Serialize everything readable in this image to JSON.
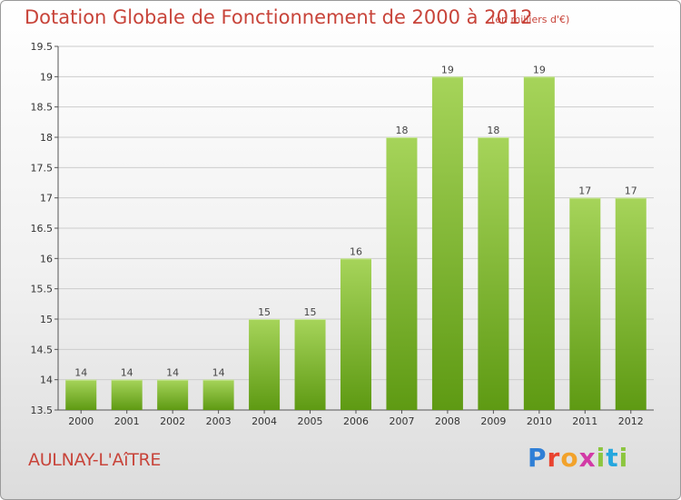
{
  "header": {
    "title": "Dotation Globale de Fonctionnement de 2000 à 2012",
    "subtitle": "(en milliers d'€)"
  },
  "footer": {
    "commune": "AULNAY-L'AîTRE",
    "logo_text": "Proxiti"
  },
  "colors": {
    "title": "#c8443a",
    "bar_top": "#a6d45a",
    "bar_bottom": "#5e9a13",
    "grid": "#cccccc",
    "axis": "#555555"
  },
  "chart_data": {
    "type": "bar",
    "title": "Dotation Globale de Fonctionnement de 2000 à 2012",
    "subtitle": "(en milliers d'€)",
    "xlabel": "",
    "ylabel": "",
    "categories": [
      "2000",
      "2001",
      "2002",
      "2003",
      "2004",
      "2005",
      "2006",
      "2007",
      "2008",
      "2009",
      "2010",
      "2011",
      "2012"
    ],
    "values": [
      14,
      14,
      14,
      14,
      15,
      15,
      16,
      18,
      19,
      18,
      19,
      17,
      17
    ],
    "data_labels": [
      "14",
      "14",
      "14",
      "14",
      "15",
      "15",
      "16",
      "18",
      "19",
      "18",
      "19",
      "17",
      "17"
    ],
    "ylim": [
      13.5,
      19.5
    ],
    "yticks": [
      13.5,
      14,
      14.5,
      15,
      15.5,
      16,
      16.5,
      17,
      17.5,
      18,
      18.5,
      19,
      19.5
    ],
    "ytick_labels": [
      "13.5",
      "14",
      "14.5",
      "15",
      "15.5",
      "16",
      "16.5",
      "17",
      "17.5",
      "18",
      "18.5",
      "19",
      "19.5"
    ],
    "grid": true,
    "legend": "none"
  }
}
